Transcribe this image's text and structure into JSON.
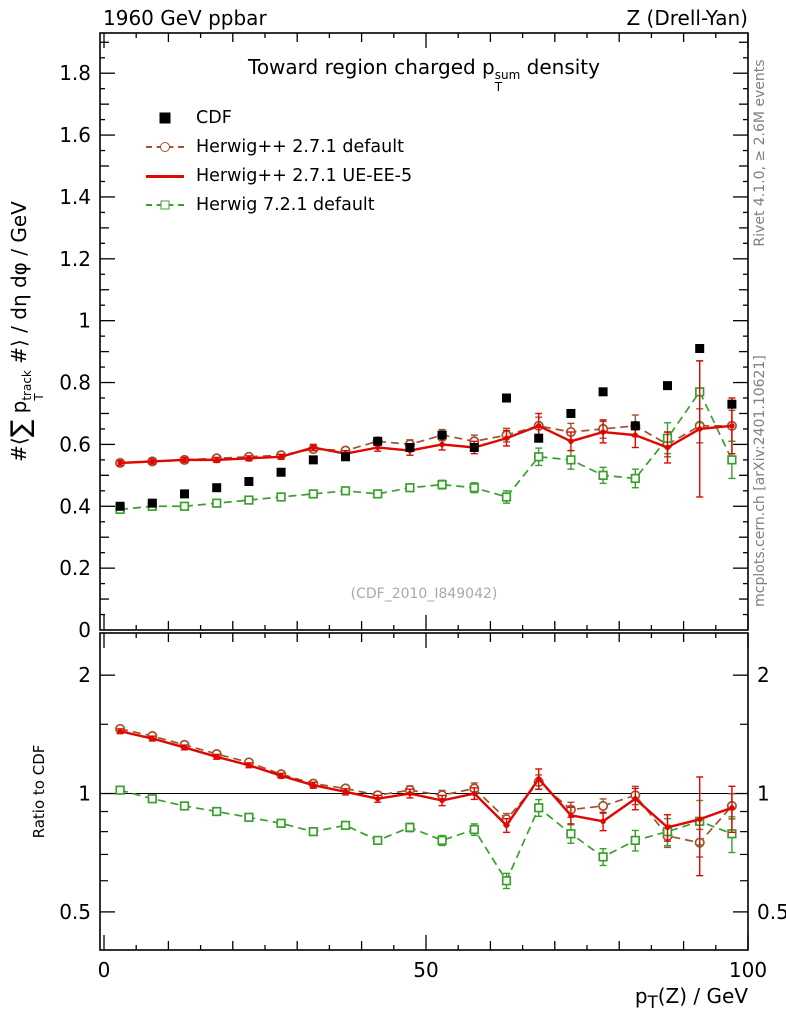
{
  "header": {
    "left": "1960 GeV ppbar",
    "right": "Z (Drell-Yan)"
  },
  "side_notes": {
    "right_top": "Rivet 4.1.0, ≥ 2.6M events",
    "right_bottom": "mcplots.cern.ch [arXiv:2401.10621]"
  },
  "watermark": "(CDF_2010_I849042)",
  "title_parts": {
    "pre": "Toward region charged p",
    "sup": "sum",
    "sub": "T",
    "post": " density"
  },
  "xlabel_parts": {
    "pre": "p",
    "sub": "T",
    "post": "(Z) / GeV"
  },
  "ylabel_parts": {
    "pre": "#⟨",
    "sum": "∑",
    "mid": " p",
    "sup": "track",
    "sub": "T",
    "post": " #⟩ / dη dφ / GeV"
  },
  "ratio_label": "Ratio to CDF",
  "chart_data": {
    "type": "line",
    "title": "Toward region charged pT^sum density",
    "xlabel": "pT(Z) / GeV",
    "ylabel": "#< sum pT^track #> / deta dphi / GeV",
    "ylabel_ratio": "Ratio to CDF",
    "legend_position": "top-left-inside",
    "x": [
      2.5,
      7.5,
      12.5,
      17.5,
      22.5,
      27.5,
      32.5,
      37.5,
      42.5,
      47.5,
      52.5,
      57.5,
      62.5,
      67.5,
      72.5,
      77.5,
      82.5,
      87.5,
      92.5,
      97.5
    ],
    "axes": {
      "x": {
        "min": 0,
        "max": 100,
        "ticks": [
          0,
          50,
          100
        ],
        "minor_step": 5
      },
      "y_main": {
        "min": 0,
        "max": 1.93,
        "ticks": [
          0,
          0.2,
          0.4,
          0.6,
          0.8,
          1,
          1.2,
          1.4,
          1.6,
          1.8
        ]
      },
      "y_ratio": {
        "scale": "log",
        "min": 0.4,
        "max": 2.56,
        "ticks": [
          0.5,
          1,
          2
        ],
        "minor": [
          0.6,
          0.7,
          0.8,
          0.9,
          1.5
        ]
      }
    },
    "series": [
      {
        "name": "CDF",
        "color": "#000000",
        "marker": "square-filled",
        "line": "none",
        "values": [
          0.4,
          0.41,
          0.44,
          0.46,
          0.48,
          0.51,
          0.55,
          0.56,
          0.61,
          0.59,
          0.63,
          0.59,
          0.75,
          0.62,
          0.7,
          0.77,
          0.66,
          0.79,
          0.91,
          0.73
        ]
      },
      {
        "name": "Herwig++ 2.7.1 default",
        "color": "#a0522d",
        "marker": "circle-open",
        "line": "dashed",
        "values": [
          0.54,
          0.545,
          0.55,
          0.555,
          0.56,
          0.565,
          0.585,
          0.58,
          0.61,
          0.6,
          0.63,
          0.61,
          0.63,
          0.66,
          0.64,
          0.65,
          0.66,
          0.6,
          0.66,
          0.66
        ],
        "err": [
          0.008,
          0.008,
          0.008,
          0.008,
          0.008,
          0.008,
          0.01,
          0.01,
          0.012,
          0.015,
          0.018,
          0.02,
          0.022,
          0.028,
          0.028,
          0.03,
          0.035,
          0.04,
          0.055,
          0.05
        ],
        "ratio": [
          1.46,
          1.4,
          1.33,
          1.26,
          1.2,
          1.12,
          1.06,
          1.03,
          0.99,
          1.02,
          0.99,
          1.03,
          0.86,
          1.07,
          0.91,
          0.93,
          0.99,
          0.78,
          0.75,
          0.93
        ]
      },
      {
        "name": "Herwig++ 2.7.1 UE-EE-5",
        "color": "#e10600",
        "marker": "dot",
        "line": "solid",
        "width": 2.4,
        "values": [
          0.54,
          0.545,
          0.55,
          0.55,
          0.555,
          0.56,
          0.59,
          0.57,
          0.59,
          0.58,
          0.6,
          0.59,
          0.62,
          0.66,
          0.61,
          0.64,
          0.63,
          0.59,
          0.65,
          0.66
        ],
        "err": [
          0.008,
          0.008,
          0.008,
          0.008,
          0.008,
          0.008,
          0.01,
          0.01,
          0.012,
          0.015,
          0.018,
          0.02,
          0.025,
          0.04,
          0.03,
          0.035,
          0.04,
          0.05,
          0.22,
          0.09
        ],
        "ratio": [
          1.44,
          1.38,
          1.31,
          1.24,
          1.18,
          1.11,
          1.05,
          1.01,
          0.97,
          1.0,
          0.96,
          1.0,
          0.83,
          1.09,
          0.88,
          0.85,
          0.97,
          0.82,
          0.86,
          0.92
        ]
      },
      {
        "name": "Herwig 7.2.1 default",
        "color": "#3aa02d",
        "marker": "square-open",
        "line": "dashed",
        "values": [
          0.39,
          0.4,
          0.4,
          0.41,
          0.42,
          0.43,
          0.44,
          0.45,
          0.44,
          0.46,
          0.47,
          0.46,
          0.43,
          0.56,
          0.55,
          0.5,
          0.49,
          0.62,
          0.77,
          0.55
        ],
        "err": [
          0.006,
          0.006,
          0.006,
          0.006,
          0.007,
          0.008,
          0.009,
          0.01,
          0.01,
          0.012,
          0.014,
          0.016,
          0.02,
          0.028,
          0.03,
          0.026,
          0.03,
          0.05,
          0.1,
          0.06
        ],
        "ratio": [
          1.02,
          0.97,
          0.93,
          0.9,
          0.87,
          0.84,
          0.8,
          0.83,
          0.76,
          0.82,
          0.76,
          0.81,
          0.6,
          0.92,
          0.79,
          0.69,
          0.76,
          0.8,
          0.85,
          0.79
        ]
      }
    ]
  }
}
